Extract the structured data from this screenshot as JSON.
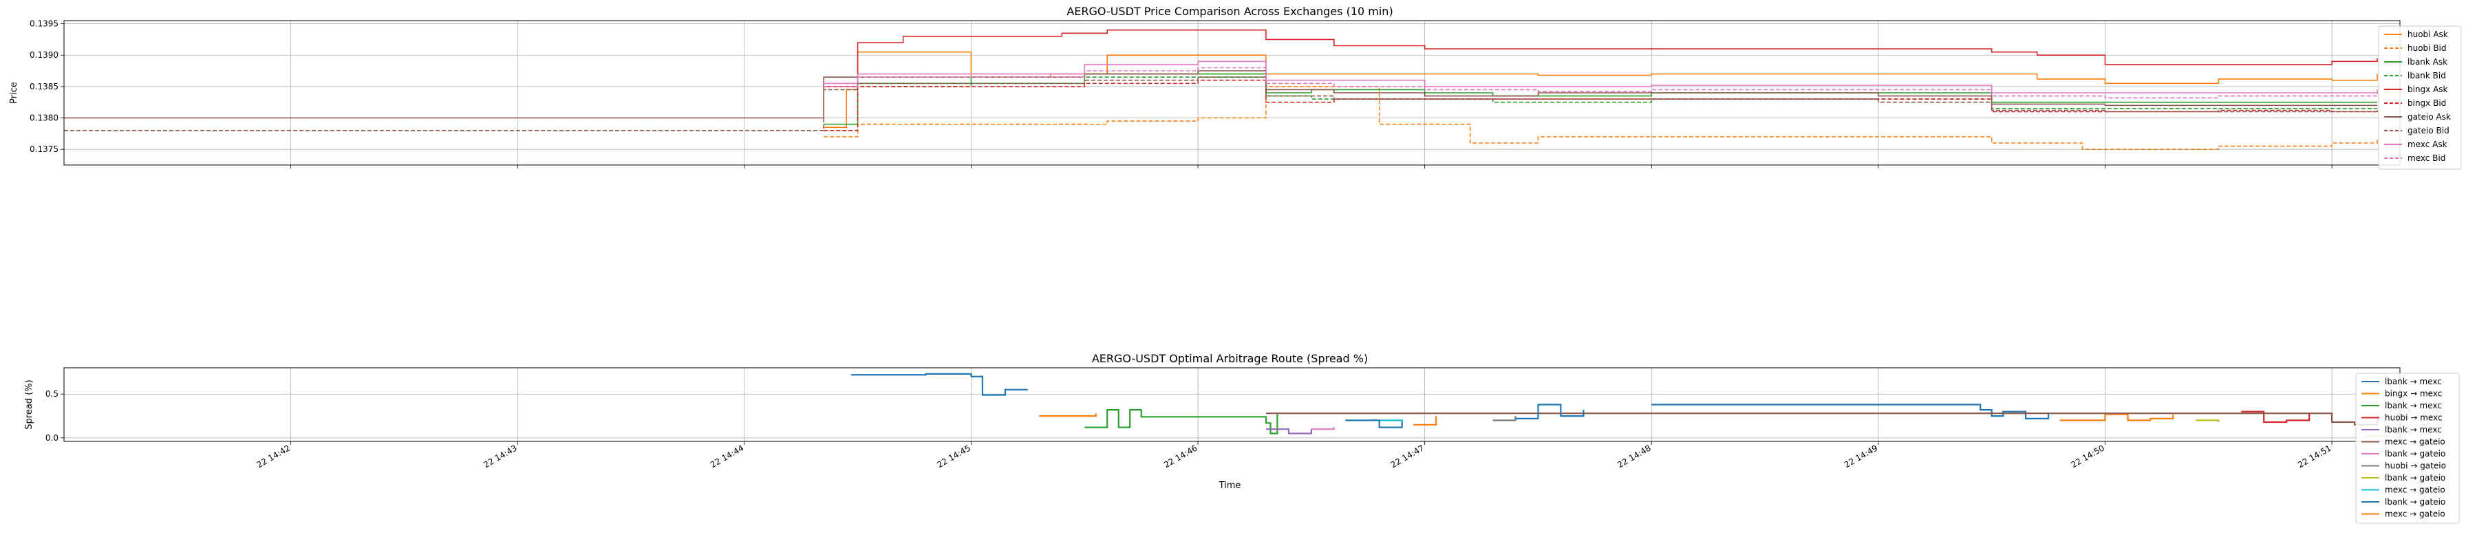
{
  "chart_data": [
    {
      "type": "line",
      "title": "AERGO-USDT Price Comparison Across Exchanges (10 min)",
      "xlabel": "",
      "ylabel": "Price",
      "ylim": [
        0.13725,
        0.13955
      ],
      "yticks": [
        "0.1375",
        "0.1380",
        "0.1385",
        "0.1390",
        "0.1395"
      ],
      "xlim_minutes": [
        41.0,
        51.3
      ],
      "grid": true,
      "legend_position": "right",
      "series": [
        {
          "name": "huobi Ask",
          "color": "#ff7f0e",
          "dash": false,
          "x": [
            44.35,
            44.45,
            44.5,
            45.0,
            45.35,
            45.6,
            46.0,
            46.3,
            46.8,
            47.5,
            48.0,
            49.0,
            49.5,
            49.7,
            50.0,
            50.5,
            51.0,
            51.2
          ],
          "y": [
            0.13785,
            0.13845,
            0.13905,
            0.13865,
            0.1387,
            0.139,
            0.139,
            0.1387,
            0.1387,
            0.13868,
            0.1387,
            0.1387,
            0.1387,
            0.13862,
            0.13855,
            0.13862,
            0.1386,
            0.1387
          ]
        },
        {
          "name": "huobi Bid",
          "color": "#ff7f0e",
          "dash": true,
          "x": [
            44.35,
            44.5,
            45.0,
            45.35,
            45.6,
            46.0,
            46.3,
            46.8,
            47.0,
            47.2,
            47.5,
            48.0,
            49.0,
            49.5,
            49.9,
            50.5,
            51.0,
            51.2
          ],
          "y": [
            0.1377,
            0.1379,
            0.1379,
            0.1379,
            0.13795,
            0.138,
            0.1385,
            0.1379,
            0.1379,
            0.1376,
            0.1377,
            0.1377,
            0.1377,
            0.1376,
            0.1375,
            0.13755,
            0.1376,
            0.13765
          ]
        },
        {
          "name": "lbank Ask",
          "color": "#2ca02c",
          "dash": false,
          "x": [
            44.35,
            44.5,
            45.0,
            45.5,
            46.0,
            46.3,
            46.5,
            47.0,
            47.3,
            48.0,
            49.0,
            49.5,
            50.0,
            50.5,
            51.0,
            51.2
          ],
          "y": [
            0.1379,
            0.13855,
            0.13865,
            0.1387,
            0.1387,
            0.1384,
            0.13845,
            0.1384,
            0.13835,
            0.1384,
            0.1384,
            0.13825,
            0.13825,
            0.13825,
            0.13825,
            0.13825
          ]
        },
        {
          "name": "lbank Bid",
          "color": "#2ca02c",
          "dash": true,
          "x": [
            44.35,
            44.5,
            45.0,
            45.5,
            46.0,
            46.3,
            46.5,
            47.0,
            47.3,
            48.0,
            49.0,
            49.5,
            50.0,
            50.5,
            51.0,
            51.2
          ],
          "y": [
            0.1378,
            0.1385,
            0.13855,
            0.13865,
            0.13865,
            0.13835,
            0.1383,
            0.1383,
            0.13825,
            0.1383,
            0.1383,
            0.13815,
            0.13815,
            0.13815,
            0.13815,
            0.13815
          ]
        },
        {
          "name": "bingx Ask",
          "color": "#d62728",
          "dash": false,
          "x": [
            44.35,
            44.5,
            44.7,
            45.0,
            45.4,
            45.6,
            46.0,
            46.3,
            46.6,
            47.0,
            47.5,
            48.0,
            49.0,
            49.5,
            49.7,
            50.0,
            50.5,
            51.0,
            51.2
          ],
          "y": [
            0.1385,
            0.1392,
            0.1393,
            0.1393,
            0.13935,
            0.1394,
            0.1394,
            0.13925,
            0.13915,
            0.1391,
            0.1391,
            0.1391,
            0.1391,
            0.13905,
            0.139,
            0.13885,
            0.13885,
            0.1389,
            0.13895
          ]
        },
        {
          "name": "bingx Bid",
          "color": "#d62728",
          "dash": true,
          "x": [
            44.35,
            44.5,
            45.0,
            45.5,
            46.0,
            46.3,
            46.6,
            47.0,
            47.5,
            48.0,
            49.0,
            49.5,
            50.0,
            50.5,
            51.0,
            51.2
          ],
          "y": [
            0.1378,
            0.1385,
            0.1385,
            0.13855,
            0.1386,
            0.13825,
            0.1383,
            0.1383,
            0.1383,
            0.1383,
            0.1383,
            0.1381,
            0.1381,
            0.13812,
            0.1381,
            0.13815
          ]
        },
        {
          "name": "gateio Ask",
          "color": "#8c564b",
          "dash": false,
          "x": [
            41.0,
            44.35,
            44.5,
            45.0,
            45.5,
            46.0,
            46.3,
            46.6,
            47.0,
            47.5,
            48.0,
            49.0,
            49.5,
            50.0,
            50.5,
            51.0,
            51.2
          ],
          "y": [
            0.138,
            0.13865,
            0.13865,
            0.13865,
            0.1387,
            0.13875,
            0.13845,
            0.1384,
            0.13835,
            0.1384,
            0.1384,
            0.13835,
            0.13822,
            0.1382,
            0.1382,
            0.1382,
            0.1382
          ]
        },
        {
          "name": "gateio Bid",
          "color": "#8c564b",
          "dash": true,
          "x": [
            41.0,
            44.35,
            44.5,
            45.0,
            45.5,
            46.0,
            46.3,
            46.6,
            47.0,
            47.5,
            48.0,
            49.0,
            49.5,
            50.0,
            50.5,
            51.0,
            51.2
          ],
          "y": [
            0.1378,
            0.13845,
            0.13855,
            0.13855,
            0.1386,
            0.13865,
            0.13835,
            0.1383,
            0.1383,
            0.1383,
            0.1383,
            0.13825,
            0.13812,
            0.1381,
            0.1381,
            0.1381,
            0.1381
          ]
        },
        {
          "name": "mexc Ask",
          "color": "#e377c2",
          "dash": false,
          "x": [
            44.35,
            44.5,
            45.0,
            45.5,
            46.0,
            46.3,
            46.6,
            47.0,
            47.5,
            48.0,
            49.0,
            49.5,
            50.0,
            50.5,
            51.0,
            51.2
          ],
          "y": [
            0.13855,
            0.1387,
            0.1387,
            0.13885,
            0.1389,
            0.1386,
            0.1386,
            0.1385,
            0.1385,
            0.13852,
            0.13852,
            0.1384,
            0.1384,
            0.1384,
            0.1384,
            0.13845
          ]
        },
        {
          "name": "mexc Bid",
          "color": "#e377c2",
          "dash": true,
          "x": [
            44.35,
            44.5,
            45.0,
            45.5,
            46.0,
            46.3,
            46.6,
            47.0,
            47.5,
            48.0,
            49.0,
            49.5,
            50.0,
            50.5,
            51.0,
            51.2
          ],
          "y": [
            0.1385,
            0.13865,
            0.13865,
            0.13875,
            0.1388,
            0.13855,
            0.1385,
            0.13845,
            0.13842,
            0.13845,
            0.13845,
            0.13835,
            0.13832,
            0.13835,
            0.13835,
            0.1384
          ]
        }
      ]
    },
    {
      "type": "line",
      "title": "AERGO-USDT Optimal Arbitrage Route (Spread %)",
      "xlabel": "Time",
      "ylabel": "Spread (%)",
      "ylim": [
        -0.04,
        0.8
      ],
      "yticks": [
        "0.0",
        "0.5"
      ],
      "xlim_minutes": [
        41.0,
        51.3
      ],
      "xticks": [
        "22 14:42",
        "22 14:43",
        "22 14:44",
        "22 14:45",
        "22 14:46",
        "22 14:47",
        "22 14:48",
        "22 14:49",
        "22 14:50",
        "22 14:51"
      ],
      "grid": true,
      "legend_position": "right",
      "series": [
        {
          "name": "lbank → mexc",
          "color": "#1f77b4",
          "segments": [
            {
              "x": [
                44.47,
                44.6,
                44.8,
                45.0
              ],
              "y": [
                0.72,
                0.72,
                0.73,
                0.7
              ]
            },
            {
              "x": [
                45.0,
                45.05,
                45.15,
                45.25
              ],
              "y": [
                0.7,
                0.49,
                0.55,
                0.55
              ]
            },
            {
              "x": [
                48.0,
                49.45,
                49.5,
                49.55,
                49.65,
                49.75
              ],
              "y": [
                0.38,
                0.32,
                0.25,
                0.3,
                0.22,
                0.28
              ]
            }
          ]
        },
        {
          "name": "bingx → mexc",
          "color": "#ff7f0e",
          "segments": [
            {
              "x": [
                45.3,
                45.45,
                45.55
              ],
              "y": [
                0.25,
                0.25,
                0.28
              ]
            },
            {
              "x": [
                49.8,
                49.9,
                50.0,
                50.1,
                50.2,
                50.3
              ],
              "y": [
                0.2,
                0.2,
                0.27,
                0.2,
                0.22,
                0.27
              ]
            }
          ]
        },
        {
          "name": "lbank → mexc",
          "color": "#2ca02c",
          "segments": [
            {
              "x": [
                45.5,
                45.6,
                45.65,
                45.7,
                45.75,
                46.3,
                46.32,
                46.35
              ],
              "y": [
                0.12,
                0.32,
                0.12,
                0.32,
                0.24,
                0.17,
                0.05,
                0.27
              ]
            }
          ]
        },
        {
          "name": "huobi → mexc",
          "color": "#d62728",
          "segments": [
            {
              "x": [
                50.6,
                50.7,
                50.8,
                50.9
              ],
              "y": [
                0.3,
                0.18,
                0.2,
                0.28
              ]
            }
          ]
        },
        {
          "name": "lbank → mexc",
          "color": "#9467bd",
          "segments": [
            {
              "x": [
                46.3,
                46.4,
                46.5
              ],
              "y": [
                0.1,
                0.05,
                0.1
              ]
            }
          ]
        },
        {
          "name": "mexc → gateio",
          "color": "#8c564b",
          "segments": [
            {
              "x": [
                46.3,
                49.5,
                50.5,
                51.0,
                51.1,
                51.2
              ],
              "y": [
                0.28,
                0.28,
                0.28,
                0.18,
                0.15,
                0.25
              ]
            }
          ]
        },
        {
          "name": "lbank → gateio",
          "color": "#e377c2",
          "segments": [
            {
              "x": [
                46.5,
                46.6
              ],
              "y": [
                0.1,
                0.12
              ]
            }
          ]
        },
        {
          "name": "huobi → gateio",
          "color": "#7f7f7f",
          "segments": [
            {
              "x": [
                47.3,
                47.4
              ],
              "y": [
                0.2,
                0.25
              ]
            }
          ]
        },
        {
          "name": "lbank → gateio",
          "color": "#bcbd22",
          "segments": [
            {
              "x": [
                50.4,
                50.5
              ],
              "y": [
                0.2,
                0.18
              ]
            },
            {
              "x": [
                51.15,
                51.25
              ],
              "y": [
                0.02,
                0.03
              ]
            }
          ]
        },
        {
          "name": "mexc → gateio",
          "color": "#17becf",
          "segments": [
            {
              "x": [
                46.75,
                46.9
              ],
              "y": [
                0.2,
                0.18
              ]
            }
          ]
        },
        {
          "name": "lbank → gateio",
          "color": "#1f77b4",
          "segments": [
            {
              "x": [
                46.65,
                46.75,
                46.8,
                46.9
              ],
              "y": [
                0.2,
                0.2,
                0.12,
                0.18
              ]
            },
            {
              "x": [
                47.4,
                47.5,
                47.6,
                47.7
              ],
              "y": [
                0.22,
                0.38,
                0.25,
                0.32
              ]
            }
          ]
        },
        {
          "name": "mexc → gateio",
          "color": "#ff7f0e",
          "segments": [
            {
              "x": [
                46.95,
                47.05
              ],
              "y": [
                0.15,
                0.25
              ]
            }
          ]
        }
      ]
    }
  ]
}
